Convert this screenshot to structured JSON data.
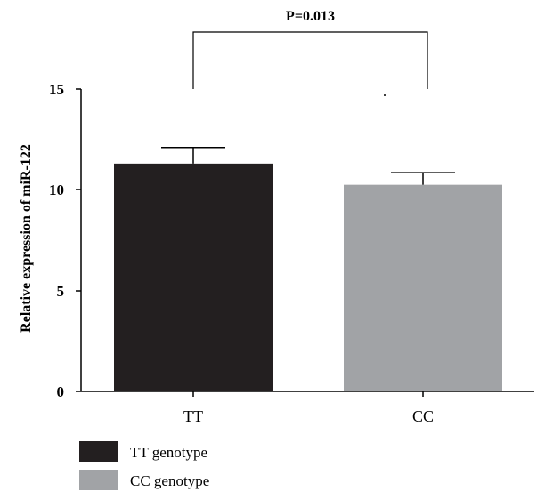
{
  "chart_data": {
    "type": "bar",
    "categories": [
      "TT",
      "CC"
    ],
    "series": [
      {
        "name": "TT genotype",
        "values": [
          11.3,
          null
        ],
        "errors": [
          0.8,
          null
        ],
        "color": "#231f20"
      },
      {
        "name": "CC genotype",
        "values": [
          null,
          10.25
        ],
        "errors": [
          null,
          0.6
        ],
        "color": "#a1a3a6"
      }
    ],
    "values": [
      11.3,
      10.25
    ],
    "errors": [
      0.8,
      0.6
    ],
    "colors": [
      "#231f20",
      "#a1a3a6"
    ],
    "ylabel": "Relative expression of miR-122",
    "xlabel": "",
    "ylim": [
      0,
      15
    ],
    "yticks": [
      "0",
      "5",
      "10",
      "15"
    ],
    "significance": {
      "label": "P=0.013",
      "between": [
        "TT",
        "CC"
      ]
    },
    "legend": {
      "position": "bottom-left",
      "items": [
        {
          "label": "TT genotype",
          "color": "#231f20"
        },
        {
          "label": "CC genotype",
          "color": "#a1a3a6"
        }
      ]
    },
    "grid": false
  }
}
